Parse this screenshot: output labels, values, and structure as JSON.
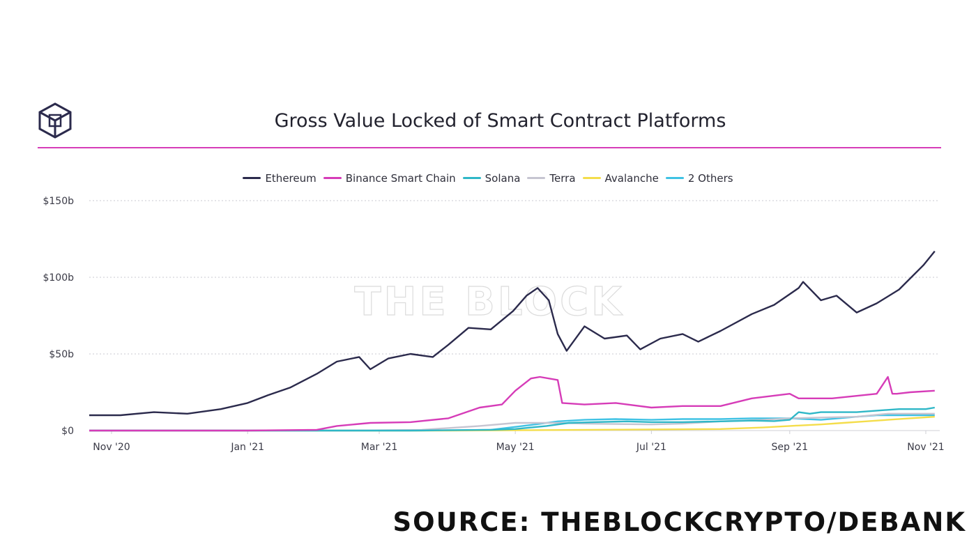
{
  "header": {
    "title": "Gross Value Locked of Smart Contract Platforms",
    "accent_color": "#d63cb8"
  },
  "watermark": "THE BLOCK",
  "source": "SOURCE: THEBLOCKCRYPTO/DEBANK",
  "chart_data": {
    "type": "line",
    "title": "Gross Value Locked of Smart Contract Platforms",
    "xlabel": "",
    "ylabel": "",
    "ylim": [
      0,
      150
    ],
    "y_ticks": [
      0,
      50,
      100,
      150
    ],
    "y_tick_labels": [
      "$0",
      "$50b",
      "$100b",
      "$150b"
    ],
    "x_ticks": [
      "2020-11-01",
      "2021-01-01",
      "2021-03-01",
      "2021-05-01",
      "2021-07-01",
      "2021-09-01",
      "2021-11-01"
    ],
    "x_tick_labels": [
      "Nov '20",
      "Jan '21",
      "Mar '21",
      "May '21",
      "Jul '21",
      "Sep '21",
      "Nov '21"
    ],
    "xlim": [
      "2020-10-22",
      "2021-11-06"
    ],
    "grid": true,
    "legend_position": "top-center",
    "series": [
      {
        "name": "Ethereum",
        "color": "#2b2a4c",
        "x": [
          "2020-10-22",
          "2020-11-05",
          "2020-11-20",
          "2020-12-05",
          "2020-12-20",
          "2021-01-01",
          "2021-01-10",
          "2021-01-20",
          "2021-02-01",
          "2021-02-10",
          "2021-02-20",
          "2021-02-25",
          "2021-03-05",
          "2021-03-15",
          "2021-03-25",
          "2021-04-01",
          "2021-04-10",
          "2021-04-20",
          "2021-04-30",
          "2021-05-06",
          "2021-05-11",
          "2021-05-16",
          "2021-05-20",
          "2021-05-24",
          "2021-06-01",
          "2021-06-10",
          "2021-06-20",
          "2021-06-26",
          "2021-07-05",
          "2021-07-15",
          "2021-07-22",
          "2021-08-01",
          "2021-08-15",
          "2021-08-25",
          "2021-09-05",
          "2021-09-07",
          "2021-09-15",
          "2021-09-22",
          "2021-10-01",
          "2021-10-10",
          "2021-10-20",
          "2021-10-31",
          "2021-11-05"
        ],
        "values": [
          10,
          10,
          12,
          11,
          14,
          18,
          23,
          28,
          37,
          45,
          48,
          40,
          47,
          50,
          48,
          56,
          67,
          66,
          78,
          88,
          93,
          85,
          63,
          52,
          68,
          60,
          62,
          53,
          60,
          63,
          58,
          65,
          76,
          82,
          93,
          97,
          85,
          88,
          77,
          83,
          92,
          108,
          117
        ]
      },
      {
        "name": "Binance Smart Chain",
        "color": "#d63cb8",
        "x": [
          "2020-10-22",
          "2021-01-01",
          "2021-02-01",
          "2021-02-10",
          "2021-02-25",
          "2021-03-15",
          "2021-04-01",
          "2021-04-15",
          "2021-04-25",
          "2021-05-01",
          "2021-05-08",
          "2021-05-12",
          "2021-05-20",
          "2021-05-22",
          "2021-06-01",
          "2021-06-15",
          "2021-07-01",
          "2021-07-15",
          "2021-08-01",
          "2021-08-15",
          "2021-09-01",
          "2021-09-05",
          "2021-09-20",
          "2021-10-10",
          "2021-10-15",
          "2021-10-17",
          "2021-10-19",
          "2021-10-25",
          "2021-11-05"
        ],
        "values": [
          0,
          0,
          0.5,
          3,
          5,
          5.5,
          8,
          15,
          17,
          26,
          34,
          35,
          33,
          18,
          17,
          18,
          15,
          16,
          16,
          21,
          24,
          21,
          21,
          24,
          35,
          24,
          24,
          25,
          26
        ]
      },
      {
        "name": "Solana",
        "color": "#2fb7c7",
        "x": [
          "2020-10-22",
          "2021-03-15",
          "2021-04-20",
          "2021-05-01",
          "2021-05-15",
          "2021-05-25",
          "2021-06-05",
          "2021-06-20",
          "2021-07-01",
          "2021-07-15",
          "2021-08-01",
          "2021-08-15",
          "2021-08-25",
          "2021-09-01",
          "2021-09-05",
          "2021-09-10",
          "2021-09-15",
          "2021-10-01",
          "2021-10-10",
          "2021-10-20",
          "2021-11-01",
          "2021-11-05"
        ],
        "values": [
          0,
          0,
          0.5,
          1,
          3,
          5,
          5.5,
          6,
          5.5,
          5.5,
          6,
          6.5,
          6.2,
          7,
          12,
          11,
          12,
          12,
          13,
          14,
          14,
          15
        ]
      },
      {
        "name": "Terra",
        "color": "#c6c5d1",
        "x": [
          "2020-10-22",
          "2021-02-15",
          "2021-03-20",
          "2021-04-15",
          "2021-05-01",
          "2021-05-20",
          "2021-06-01",
          "2021-07-01",
          "2021-07-15",
          "2021-08-01",
          "2021-08-20",
          "2021-09-01",
          "2021-09-15",
          "2021-10-01",
          "2021-10-15",
          "2021-10-25",
          "2021-11-05"
        ],
        "values": [
          0,
          0,
          0.5,
          3,
          5,
          5,
          4.5,
          4,
          4.5,
          6,
          7,
          8,
          8.5,
          9,
          11,
          11,
          11
        ]
      },
      {
        "name": "Avalanche",
        "color": "#f4dd4b",
        "x": [
          "2020-10-22",
          "2021-04-01",
          "2021-05-15",
          "2021-06-15",
          "2021-08-01",
          "2021-08-20",
          "2021-09-01",
          "2021-09-15",
          "2021-09-25",
          "2021-10-05",
          "2021-10-15",
          "2021-10-25",
          "2021-11-05"
        ],
        "values": [
          0,
          0,
          0.3,
          0.6,
          1,
          2,
          3,
          4,
          5,
          6,
          7,
          8,
          9
        ]
      },
      {
        "name": "2 Others",
        "color": "#3fc2e4",
        "x": [
          "2020-10-22",
          "2021-03-20",
          "2021-04-20",
          "2021-05-10",
          "2021-05-20",
          "2021-06-01",
          "2021-06-15",
          "2021-07-01",
          "2021-07-15",
          "2021-08-01",
          "2021-08-15",
          "2021-09-01",
          "2021-09-15",
          "2021-10-01",
          "2021-10-10",
          "2021-10-20",
          "2021-11-05"
        ],
        "values": [
          0,
          0,
          0.5,
          4,
          6,
          7,
          7.5,
          7,
          7.5,
          7.5,
          8,
          8,
          7,
          9,
          10,
          10,
          10
        ]
      }
    ]
  }
}
